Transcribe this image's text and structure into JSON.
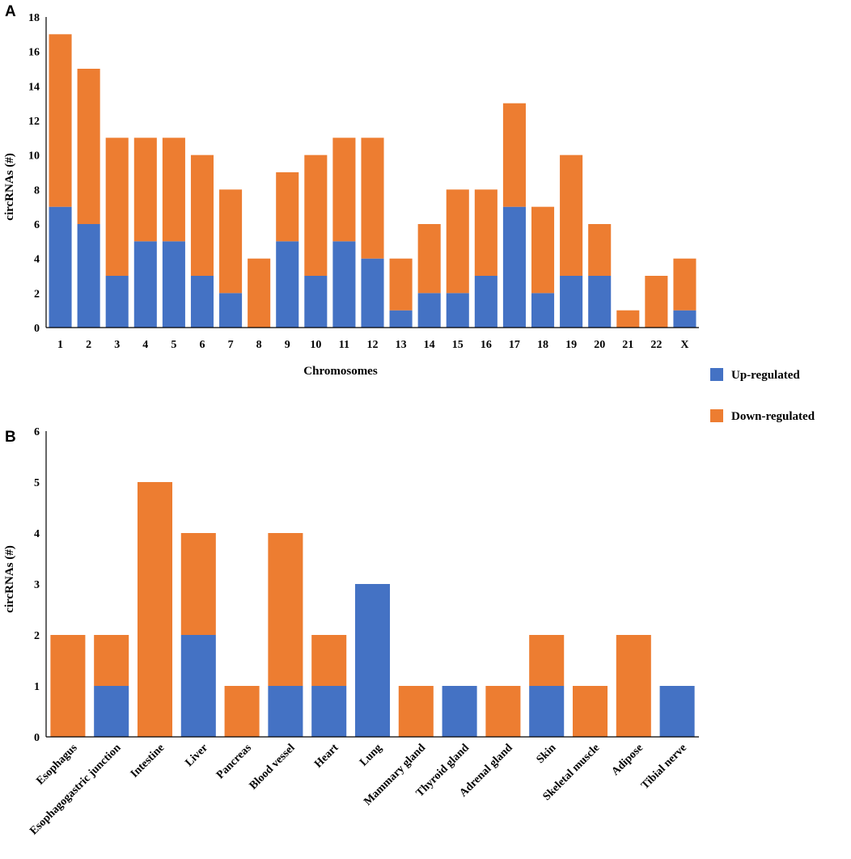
{
  "colors": {
    "up": "#4472c4",
    "down": "#ed7d31"
  },
  "legend": {
    "up_label": "Up-regulated",
    "down_label": "Down-regulated"
  },
  "chart_data": [
    {
      "panel": "A",
      "type": "bar",
      "stacked": true,
      "title": "",
      "xlabel": "Chromosomes",
      "ylabel": "circRNAs (#)",
      "ylim": [
        0,
        18
      ],
      "yticks": [
        0,
        2,
        4,
        6,
        8,
        10,
        12,
        14,
        16,
        18
      ],
      "categories": [
        "1",
        "2",
        "3",
        "4",
        "5",
        "6",
        "7",
        "8",
        "9",
        "10",
        "11",
        "12",
        "13",
        "14",
        "15",
        "16",
        "17",
        "18",
        "19",
        "20",
        "21",
        "22",
        "X"
      ],
      "series": [
        {
          "name": "Up-regulated",
          "values": [
            7,
            6,
            3,
            5,
            5,
            3,
            2,
            0,
            5,
            3,
            5,
            4,
            1,
            2,
            2,
            3,
            7,
            2,
            3,
            3,
            0,
            0,
            1
          ]
        },
        {
          "name": "Down-regulated",
          "values": [
            10,
            9,
            8,
            6,
            6,
            7,
            6,
            4,
            4,
            7,
            6,
            7,
            3,
            4,
            6,
            5,
            6,
            5,
            7,
            3,
            1,
            3,
            3
          ]
        }
      ]
    },
    {
      "panel": "B",
      "type": "bar",
      "stacked": true,
      "title": "",
      "xlabel": "",
      "ylabel": "circRNAs (#)",
      "ylim": [
        0,
        6
      ],
      "yticks": [
        0,
        1,
        2,
        3,
        4,
        5,
        6
      ],
      "categories": [
        "Esophagus",
        "Esophagogastric junction",
        "Intestine",
        "Liver",
        "Pancreas",
        "Blood vessel",
        "Heart",
        "Lung",
        "Mammary gland",
        "Thyroid gland",
        "Adrenal gland",
        "Skin",
        "Skeletal muscle",
        "Adipose",
        "Tibial nerve"
      ],
      "series": [
        {
          "name": "Up-regulated",
          "values": [
            0,
            1,
            0,
            2,
            0,
            1,
            1,
            3,
            0,
            1,
            0,
            1,
            0,
            0,
            1
          ]
        },
        {
          "name": "Down-regulated",
          "values": [
            2,
            1,
            5,
            2,
            1,
            3,
            1,
            0,
            1,
            0,
            1,
            1,
            1,
            2,
            0
          ]
        }
      ]
    }
  ]
}
